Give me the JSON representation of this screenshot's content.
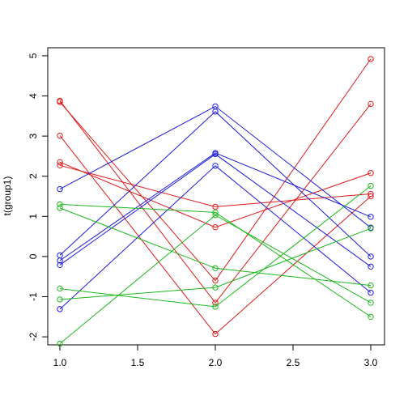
{
  "chart_data": {
    "type": "line",
    "title": "",
    "xlabel": "",
    "ylabel": "t(group1)",
    "xlim": [
      1,
      3
    ],
    "ylim": [
      -2.2,
      5.2
    ],
    "x": [
      1,
      2,
      3
    ],
    "x_ticks": [
      "1.0",
      "1.5",
      "2.0",
      "2.5",
      "3.0"
    ],
    "y_ticks": [
      "-2",
      "-1",
      "0",
      "1",
      "2",
      "3",
      "4",
      "5"
    ],
    "markers": "open-circle",
    "grid": false,
    "series": [
      {
        "color": "#dd1c1c",
        "values": [
          3.85,
          -0.6,
          4.92
        ]
      },
      {
        "color": "#dd1c1c",
        "values": [
          3.88,
          -1.15,
          3.8
        ]
      },
      {
        "color": "#dd1c1c",
        "values": [
          3.01,
          -1.93,
          1.5
        ]
      },
      {
        "color": "#dd1c1c",
        "values": [
          2.35,
          0.73,
          2.08
        ]
      },
      {
        "color": "#dd1c1c",
        "values": [
          2.27,
          1.24,
          1.56
        ]
      },
      {
        "color": "#1c1cdd",
        "values": [
          1.68,
          3.74,
          0.72
        ]
      },
      {
        "color": "#1c1cdd",
        "values": [
          0.03,
          3.61,
          0.0
        ]
      },
      {
        "color": "#1c1cdd",
        "values": [
          -0.1,
          2.58,
          0.99
        ]
      },
      {
        "color": "#1c1cdd",
        "values": [
          -0.21,
          2.55,
          -0.25
        ]
      },
      {
        "color": "#1c1cdd",
        "values": [
          -1.31,
          2.26,
          -0.9
        ]
      },
      {
        "color": "#1cb81c",
        "values": [
          1.3,
          1.1,
          -1.5
        ]
      },
      {
        "color": "#1cb81c",
        "values": [
          1.21,
          -0.29,
          -0.72
        ]
      },
      {
        "color": "#1cb81c",
        "values": [
          -0.8,
          -1.25,
          1.76
        ]
      },
      {
        "color": "#1cb81c",
        "values": [
          -1.07,
          -0.77,
          0.7
        ]
      },
      {
        "color": "#1cb81c",
        "values": [
          -2.17,
          1.03,
          -1.15
        ]
      }
    ]
  }
}
